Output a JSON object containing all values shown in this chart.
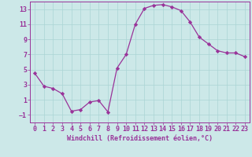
{
  "x": [
    0,
    1,
    2,
    3,
    4,
    5,
    6,
    7,
    8,
    9,
    10,
    11,
    12,
    13,
    14,
    15,
    16,
    17,
    18,
    19,
    20,
    21,
    22,
    23
  ],
  "y": [
    4.5,
    2.8,
    2.5,
    1.8,
    -0.5,
    -0.3,
    0.7,
    0.9,
    -0.6,
    5.2,
    7.0,
    11.0,
    13.1,
    13.5,
    13.6,
    13.3,
    12.8,
    11.3,
    9.3,
    8.4,
    7.5,
    7.2,
    7.2,
    6.7
  ],
  "line_color": "#993399",
  "marker": "D",
  "marker_size": 2.2,
  "bg_color": "#cce8e8",
  "grid_color": "#aad4d4",
  "xlabel": "Windchill (Refroidissement éolien,°C)",
  "xlabel_fontsize": 6.0,
  "tick_fontsize": 6.0,
  "ylim": [
    -2,
    14
  ],
  "xlim": [
    -0.5,
    23.5
  ],
  "yticks": [
    -1,
    1,
    3,
    5,
    7,
    9,
    11,
    13
  ],
  "xticks": [
    0,
    1,
    2,
    3,
    4,
    5,
    6,
    7,
    8,
    9,
    10,
    11,
    12,
    13,
    14,
    15,
    16,
    17,
    18,
    19,
    20,
    21,
    22,
    23
  ]
}
